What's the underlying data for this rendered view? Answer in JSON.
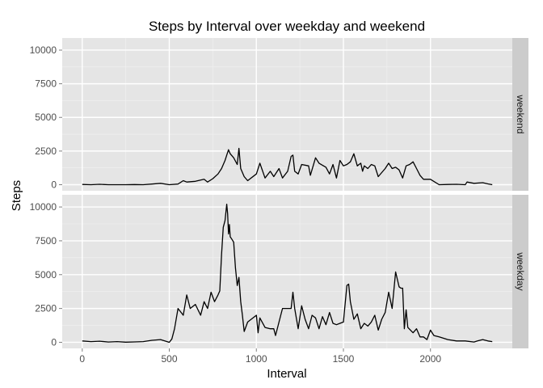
{
  "chart_data": {
    "type": "line",
    "title": "Steps by Interval over weekday and weekend",
    "xlabel": "Interval",
    "ylabel": "Steps",
    "xlim": [
      -115,
      2470
    ],
    "ylim": [
      -450,
      10900
    ],
    "x_ticks": [
      0,
      500,
      1000,
      1500,
      2000
    ],
    "x_tick_labels": [
      "0",
      "500",
      "1000",
      "1500",
      "2000"
    ],
    "y_ticks": [
      0,
      2500,
      5000,
      7500,
      10000
    ],
    "y_tick_labels": [
      "0",
      "2500",
      "5000",
      "7500",
      "10000"
    ],
    "grid": true,
    "line_color": "#000000",
    "panel_background": "#e5e5e5",
    "strip_background": "#cccccc",
    "panels": [
      {
        "label": "weekend",
        "x": [
          0,
          50,
          100,
          150,
          200,
          250,
          300,
          350,
          400,
          450,
          500,
          550,
          580,
          600,
          650,
          700,
          720,
          750,
          780,
          800,
          820,
          830,
          840,
          850,
          870,
          890,
          900,
          910,
          930,
          950,
          1000,
          1020,
          1050,
          1080,
          1100,
          1130,
          1150,
          1180,
          1200,
          1210,
          1220,
          1240,
          1260,
          1300,
          1310,
          1340,
          1360,
          1400,
          1420,
          1440,
          1460,
          1480,
          1500,
          1520,
          1540,
          1560,
          1580,
          1600,
          1610,
          1620,
          1640,
          1660,
          1680,
          1700,
          1720,
          1740,
          1760,
          1780,
          1800,
          1820,
          1840,
          1860,
          1880,
          1900,
          1920,
          1940,
          1960,
          2000,
          2050,
          2100,
          2150,
          2200,
          2210,
          2250,
          2300,
          2330,
          2355
        ],
        "y": [
          20,
          0,
          30,
          0,
          0,
          0,
          10,
          0,
          50,
          100,
          0,
          50,
          300,
          200,
          250,
          400,
          200,
          450,
          800,
          1200,
          1800,
          2200,
          2600,
          2300,
          2000,
          1500,
          2700,
          1200,
          600,
          300,
          800,
          1600,
          500,
          1000,
          600,
          1200,
          500,
          1000,
          2100,
          2200,
          1000,
          800,
          1500,
          1400,
          700,
          2000,
          1600,
          1300,
          800,
          1500,
          500,
          1800,
          1400,
          1500,
          1700,
          2300,
          1400,
          1600,
          1000,
          1400,
          1200,
          1500,
          1400,
          600,
          900,
          1200,
          1600,
          1200,
          1300,
          1100,
          500,
          1400,
          1500,
          1700,
          1200,
          700,
          400,
          400,
          0,
          20,
          30,
          0,
          200,
          100,
          150,
          60,
          0
        ]
      },
      {
        "label": "weekday",
        "x": [
          0,
          50,
          100,
          150,
          200,
          250,
          300,
          350,
          400,
          450,
          500,
          515,
          530,
          550,
          580,
          600,
          620,
          650,
          680,
          700,
          720,
          740,
          760,
          780,
          790,
          800,
          810,
          820,
          830,
          835,
          840,
          845,
          850,
          860,
          870,
          880,
          890,
          900,
          910,
          920,
          930,
          950,
          1000,
          1010,
          1020,
          1050,
          1080,
          1100,
          1110,
          1130,
          1150,
          1200,
          1210,
          1220,
          1240,
          1260,
          1280,
          1300,
          1320,
          1340,
          1360,
          1380,
          1400,
          1420,
          1440,
          1460,
          1480,
          1500,
          1520,
          1530,
          1540,
          1560,
          1580,
          1600,
          1620,
          1640,
          1660,
          1680,
          1700,
          1720,
          1740,
          1760,
          1780,
          1800,
          1820,
          1830,
          1840,
          1850,
          1860,
          1870,
          1900,
          1920,
          1940,
          1960,
          1980,
          2000,
          2020,
          2050,
          2100,
          2150,
          2200,
          2250,
          2270,
          2300,
          2330,
          2355
        ],
        "y": [
          100,
          50,
          80,
          20,
          50,
          10,
          30,
          50,
          150,
          200,
          0,
          250,
          1000,
          2500,
          2000,
          3500,
          2500,
          2800,
          2000,
          3000,
          2500,
          3700,
          3000,
          3500,
          3800,
          6500,
          8500,
          9000,
          10200,
          9500,
          8000,
          8700,
          7800,
          7600,
          7400,
          5500,
          4200,
          4800,
          3000,
          2000,
          800,
          1500,
          2000,
          700,
          1800,
          1100,
          1000,
          1000,
          500,
          1500,
          2500,
          2500,
          3700,
          2500,
          1000,
          2700,
          1700,
          1000,
          2000,
          1800,
          1000,
          1900,
          1300,
          2200,
          1400,
          1300,
          1400,
          1500,
          4200,
          4300,
          3000,
          1700,
          2100,
          1000,
          1400,
          1200,
          1500,
          2000,
          900,
          1700,
          2200,
          3700,
          2500,
          5200,
          4100,
          4000,
          4000,
          1000,
          2400,
          1100,
          700,
          1000,
          400,
          400,
          200,
          900,
          500,
          400,
          200,
          100,
          100,
          20,
          100,
          200,
          100,
          50
        ]
      }
    ]
  }
}
